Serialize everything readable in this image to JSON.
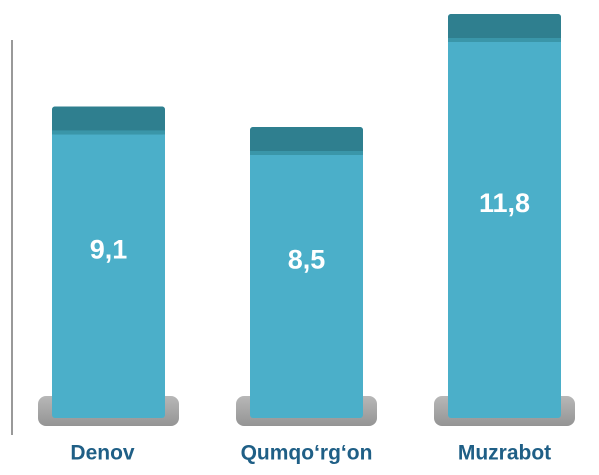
{
  "chart_data": {
    "type": "bar",
    "categories": [
      "Denov",
      "Qumqo‘rg‘on",
      "Muzrabot"
    ],
    "values": [
      9.1,
      8.5,
      11.8
    ],
    "value_labels": [
      "9,1",
      "8,5",
      "11,8"
    ],
    "color": "#4bafc9"
  }
}
